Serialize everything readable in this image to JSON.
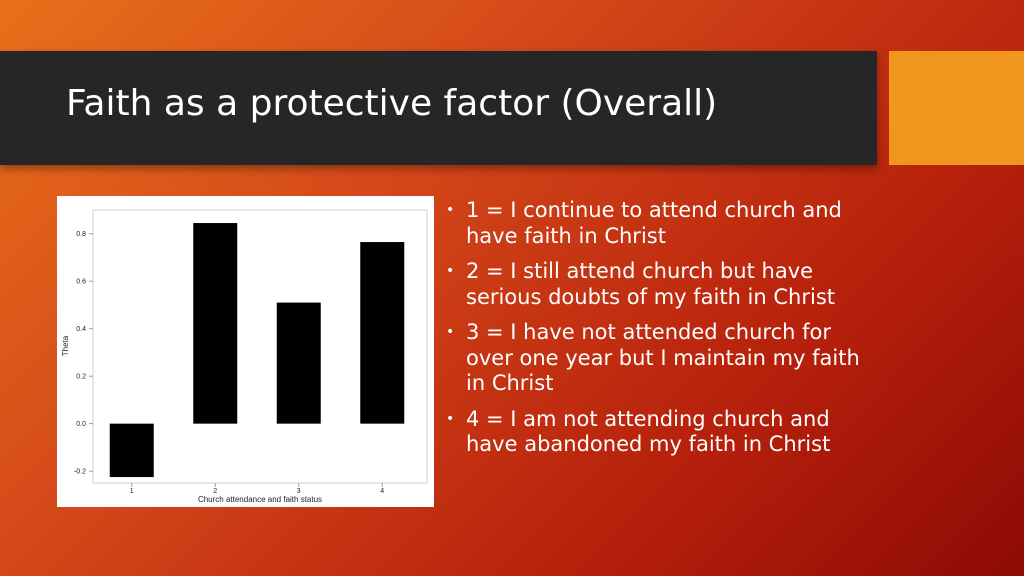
{
  "slide": {
    "title": "Faith as a protective factor (Overall)",
    "colors": {
      "title_bar": "#262626",
      "accent": "#f0951e",
      "bars": "#000000"
    }
  },
  "bullets": [
    "1 = I continue to attend church and have faith in Christ",
    "2 = I still attend church but have serious doubts of my faith in Christ",
    "3 = I have not attended church for over one year but I maintain my faith in Christ",
    "4 = I am not attending church and have abandoned my faith in Christ"
  ],
  "chart_data": {
    "type": "bar",
    "categories": [
      "1",
      "2",
      "3",
      "4"
    ],
    "values": [
      -0.225,
      0.845,
      0.51,
      0.765
    ],
    "xlabel": "Church attendance and faith status",
    "ylabel": "Theta",
    "ylim": [
      -0.25,
      0.9
    ],
    "yticks": [
      "-0.2",
      "0.0",
      "0.2",
      "0.4",
      "0.6",
      "0.8"
    ],
    "grid": false
  }
}
